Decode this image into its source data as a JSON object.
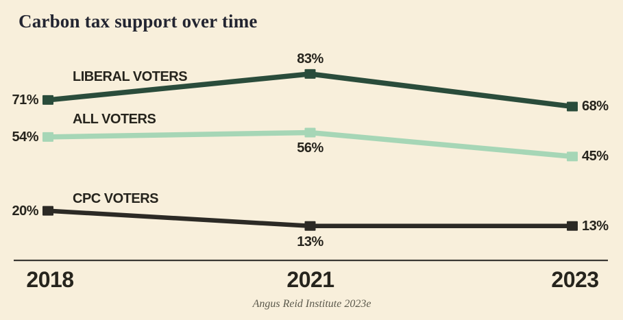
{
  "source": "Angus Reid Institute 2023e",
  "colors": {
    "background": "#f8efdb",
    "axis": "#3a3833",
    "label_text": "#26241d",
    "title_text": "#232531",
    "source_text": "#5b594c",
    "liberal": "#2a4c3b",
    "all_voters": "#a6d6b6",
    "cpc": "#2c2a25"
  },
  "chart_data": {
    "type": "line",
    "title": "Carbon tax support over time",
    "xlabel": "",
    "ylabel": "",
    "ylim": [
      0,
      100
    ],
    "grid": false,
    "legend_position": "inline-labels-above-lines",
    "categories": [
      "2018",
      "2021",
      "2023"
    ],
    "series": [
      {
        "name": "LIBERAL VOTERS",
        "values": [
          71,
          83,
          68
        ],
        "point_labels": [
          "71%",
          "83%",
          "68%"
        ],
        "label_placement": [
          "left",
          "above",
          "right"
        ],
        "color": "#2a4c3b"
      },
      {
        "name": "ALL VOTERS",
        "values": [
          54,
          56,
          45
        ],
        "point_labels": [
          "54%",
          "56%",
          "45%"
        ],
        "label_placement": [
          "left",
          "below",
          "right"
        ],
        "color": "#a6d6b6"
      },
      {
        "name": "CPC VOTERS",
        "values": [
          20,
          13,
          13
        ],
        "point_labels": [
          "20%",
          "13%",
          "13%"
        ],
        "label_placement": [
          "left",
          "below",
          "right"
        ],
        "color": "#2c2a25"
      }
    ]
  }
}
